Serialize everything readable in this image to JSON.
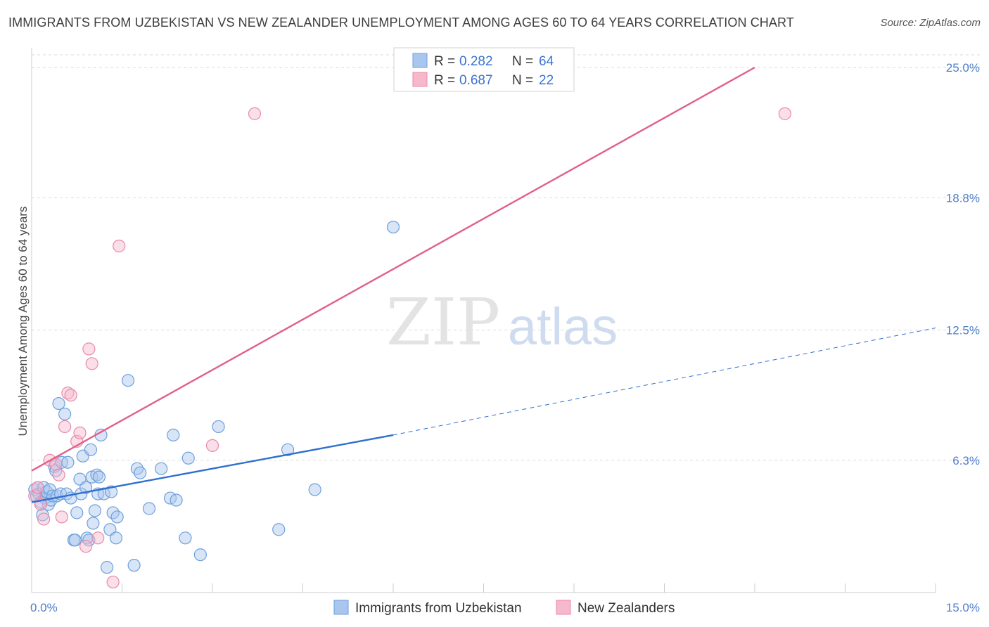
{
  "header": {
    "title": "IMMIGRANTS FROM UZBEKISTAN VS NEW ZEALANDER UNEMPLOYMENT AMONG AGES 60 TO 64 YEARS CORRELATION CHART",
    "source": "Source: ZipAtlas.com"
  },
  "watermark": {
    "zip": "ZIP",
    "atlas": "atlas"
  },
  "legend": {
    "rows": [
      {
        "r_label": "R =",
        "r_value": "0.282",
        "n_label": "N =",
        "n_value": "64"
      },
      {
        "r_label": "R =",
        "r_value": "0.687",
        "n_label": "N =",
        "n_value": "22"
      }
    ]
  },
  "colors": {
    "blue_fill": "#a9c6ee",
    "blue_stroke": "#6f9fdc",
    "blue_line": "#2f6fd0",
    "pink_fill": "#f6b8cb",
    "pink_stroke": "#e889a8",
    "pink_line": "#e0608a",
    "grid": "#d9d9d9",
    "axis_text": "#4f7fcb"
  },
  "chart_data": {
    "type": "scatter",
    "title": "IMMIGRANTS FROM UZBEKISTAN VS NEW ZEALANDER UNEMPLOYMENT AMONG AGES 60 TO 64 YEARS CORRELATION CHART",
    "ylabel": "Unemployment Among Ages 60 to 64 years",
    "xlabel": "",
    "xlim": [
      0,
      15
    ],
    "ylim": [
      0,
      25.0
    ],
    "x_tick_labels": [
      "0.0%",
      "15.0%"
    ],
    "y_ticks": [
      {
        "value": 6.3,
        "label": "6.3%"
      },
      {
        "value": 12.5,
        "label": "12.5%"
      },
      {
        "value": 18.8,
        "label": "18.8%"
      },
      {
        "value": 25.0,
        "label": "25.0%"
      }
    ],
    "series": [
      {
        "name": "Immigrants from Uzbekistan",
        "color": "blue",
        "R": 0.282,
        "N": 64,
        "trend": {
          "x0": 0.0,
          "y0": 4.3,
          "x1": 6.0,
          "y1": 7.5,
          "dash_x1": 15.0,
          "dash_y1": 12.6
        },
        "points": [
          [
            0.05,
            4.9
          ],
          [
            0.08,
            4.6
          ],
          [
            0.1,
            5.0
          ],
          [
            0.12,
            4.7
          ],
          [
            0.15,
            4.3
          ],
          [
            0.18,
            3.7
          ],
          [
            0.2,
            5.0
          ],
          [
            0.22,
            4.5
          ],
          [
            0.25,
            4.8
          ],
          [
            0.28,
            4.2
          ],
          [
            0.3,
            4.9
          ],
          [
            0.32,
            4.4
          ],
          [
            0.35,
            4.6
          ],
          [
            0.38,
            6.0
          ],
          [
            0.4,
            5.8
          ],
          [
            0.42,
            4.6
          ],
          [
            0.45,
            9.0
          ],
          [
            0.48,
            4.7
          ],
          [
            0.5,
            6.2
          ],
          [
            0.55,
            8.5
          ],
          [
            0.58,
            4.7
          ],
          [
            0.6,
            6.2
          ],
          [
            0.65,
            4.5
          ],
          [
            0.7,
            2.5
          ],
          [
            0.72,
            2.5
          ],
          [
            0.75,
            3.8
          ],
          [
            0.8,
            5.4
          ],
          [
            0.82,
            4.7
          ],
          [
            0.85,
            6.5
          ],
          [
            0.9,
            5.0
          ],
          [
            0.92,
            2.6
          ],
          [
            0.95,
            2.5
          ],
          [
            0.98,
            6.8
          ],
          [
            1.0,
            5.5
          ],
          [
            1.02,
            3.3
          ],
          [
            1.05,
            3.9
          ],
          [
            1.08,
            5.6
          ],
          [
            1.1,
            4.7
          ],
          [
            1.12,
            5.5
          ],
          [
            1.15,
            7.5
          ],
          [
            1.2,
            4.7
          ],
          [
            1.25,
            1.2
          ],
          [
            1.3,
            3.0
          ],
          [
            1.32,
            4.8
          ],
          [
            1.35,
            3.8
          ],
          [
            1.4,
            2.6
          ],
          [
            1.42,
            3.6
          ],
          [
            1.6,
            10.1
          ],
          [
            1.7,
            1.3
          ],
          [
            1.75,
            5.9
          ],
          [
            1.8,
            5.7
          ],
          [
            1.95,
            4.0
          ],
          [
            2.15,
            5.9
          ],
          [
            2.3,
            4.5
          ],
          [
            2.35,
            7.5
          ],
          [
            2.4,
            4.4
          ],
          [
            2.55,
            2.6
          ],
          [
            2.6,
            6.4
          ],
          [
            2.8,
            1.8
          ],
          [
            3.1,
            7.9
          ],
          [
            4.1,
            3.0
          ],
          [
            4.25,
            6.8
          ],
          [
            4.7,
            4.9
          ],
          [
            6.0,
            17.4
          ]
        ]
      },
      {
        "name": "New Zealanders",
        "color": "pink",
        "R": 0.687,
        "N": 22,
        "trend": {
          "x0": 0.0,
          "y0": 5.8,
          "x1": 12.0,
          "y1": 25.0
        },
        "points": [
          [
            0.05,
            4.6
          ],
          [
            0.1,
            5.0
          ],
          [
            0.15,
            4.2
          ],
          [
            0.2,
            3.5
          ],
          [
            0.3,
            6.3
          ],
          [
            0.4,
            6.1
          ],
          [
            0.45,
            5.6
          ],
          [
            0.5,
            3.6
          ],
          [
            0.55,
            7.9
          ],
          [
            0.6,
            9.5
          ],
          [
            0.65,
            9.4
          ],
          [
            0.75,
            7.2
          ],
          [
            0.8,
            7.6
          ],
          [
            0.9,
            2.2
          ],
          [
            0.95,
            11.6
          ],
          [
            1.0,
            10.9
          ],
          [
            1.1,
            2.6
          ],
          [
            1.35,
            0.5
          ],
          [
            1.45,
            16.5
          ],
          [
            3.0,
            7.0
          ],
          [
            3.7,
            22.8
          ],
          [
            12.5,
            22.8
          ]
        ]
      }
    ]
  },
  "bottom_legend": {
    "items": [
      {
        "label": "Immigrants from Uzbekistan"
      },
      {
        "label": "New Zealanders"
      }
    ]
  }
}
